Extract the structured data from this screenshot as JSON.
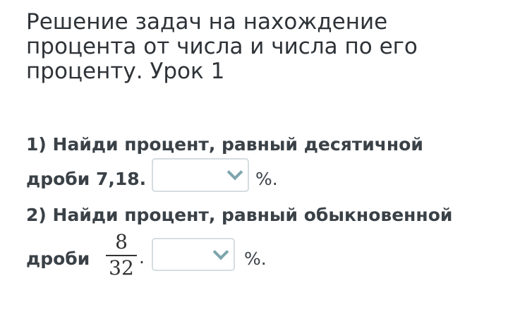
{
  "title": "Решение задач на нахождение процента от числа и числа по его проценту. Урок 1",
  "questions": [
    {
      "line1": "1) Найди процент, равный десятичной",
      "line2": "дроби 7,18.",
      "suffix": "%.",
      "dropdown_value": ""
    },
    {
      "line1": "2) Найди процент, равный обыкновенной",
      "line2": "дроби",
      "numerator": "8",
      "denominator": "32",
      "dot": ".",
      "suffix": "%.",
      "dropdown_value": ""
    }
  ],
  "colors": {
    "text": "#3a4147",
    "dropdown_border": "#d5dde0",
    "chevron": "#7ea5ad"
  },
  "icons": {
    "dropdown": "chevron-down-icon"
  }
}
